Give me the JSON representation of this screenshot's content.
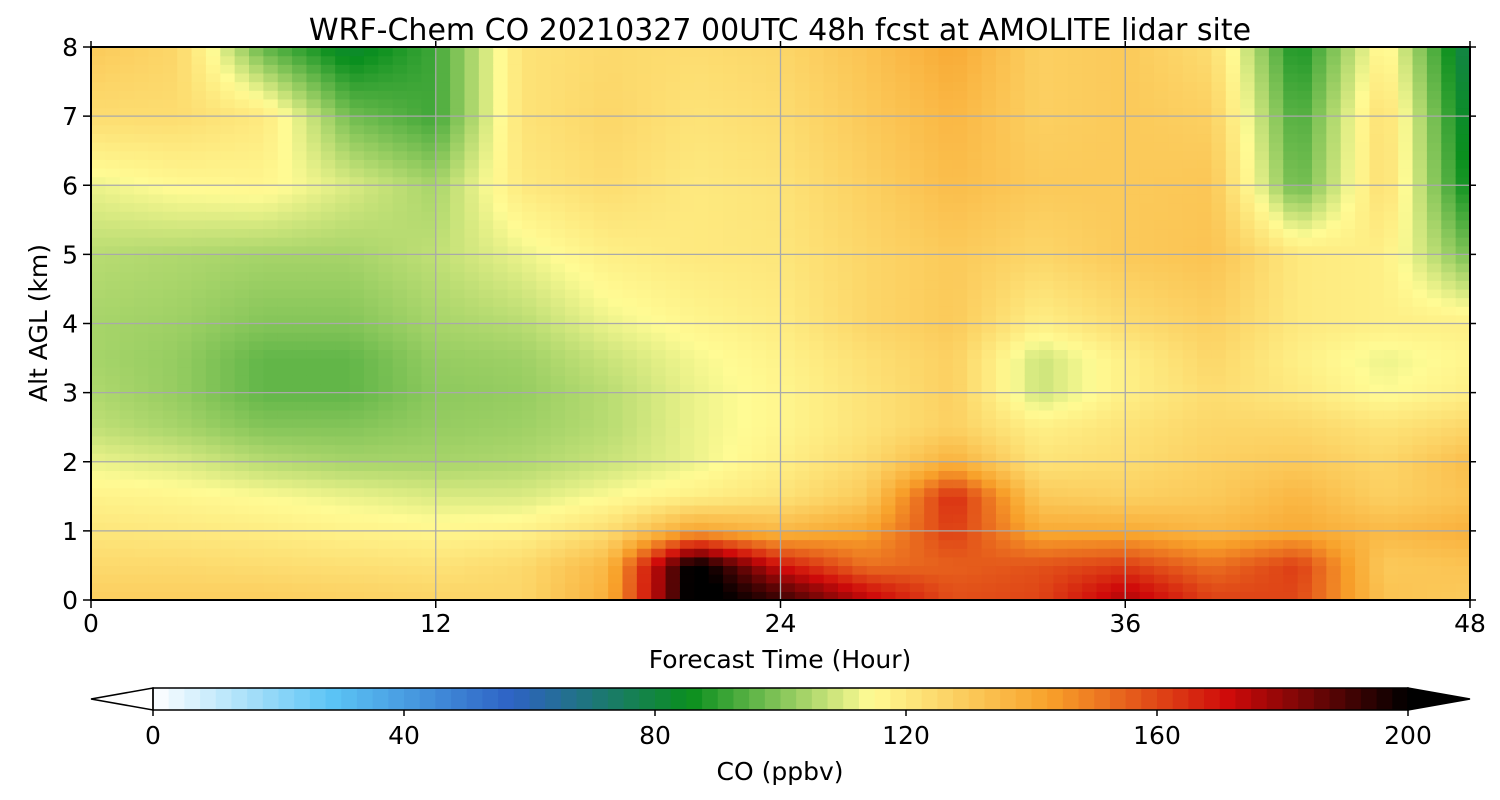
{
  "chart_data": {
    "type": "heatmap",
    "title": "WRF-Chem CO  20210327 00UTC 48h fcst at AMOLITE lidar site",
    "xlabel": "Forecast Time (Hour)",
    "ylabel": "Alt AGL (km)",
    "xlim": [
      0,
      48
    ],
    "ylim": [
      0,
      8
    ],
    "x_ticks": [
      0,
      12,
      24,
      36,
      48
    ],
    "y_ticks": [
      0,
      1,
      2,
      3,
      4,
      5,
      6,
      7,
      8
    ],
    "grid": true,
    "x": [
      0,
      3,
      6,
      9,
      12,
      15,
      18,
      21,
      24,
      27,
      30,
      33,
      36,
      39,
      42,
      45,
      48
    ],
    "y": [
      0.1,
      0.5,
      1,
      1.5,
      2,
      2.5,
      3,
      3.5,
      4,
      5,
      6,
      7,
      8
    ],
    "z": [
      [
        128,
        128,
        128,
        127,
        126,
        126,
        138,
        205,
        190,
        172,
        158,
        160,
        175,
        160,
        160,
        132,
        130
      ],
      [
        125,
        125,
        124,
        123,
        122,
        125,
        136,
        205,
        170,
        152,
        155,
        158,
        162,
        152,
        162,
        130,
        132
      ],
      [
        121,
        120,
        119,
        117,
        116,
        117,
        124,
        142,
        136,
        142,
        162,
        140,
        140,
        136,
        140,
        135,
        138
      ],
      [
        117,
        116,
        114,
        112,
        110,
        110,
        114,
        118,
        122,
        130,
        166,
        130,
        128,
        130,
        136,
        128,
        132
      ],
      [
        112,
        110,
        106,
        104,
        104,
        105,
        108,
        112,
        118,
        125,
        138,
        122,
        124,
        128,
        130,
        126,
        134
      ],
      [
        107,
        104,
        100,
        100,
        102,
        103,
        106,
        112,
        116,
        122,
        128,
        118,
        122,
        126,
        126,
        122,
        126
      ],
      [
        105,
        102,
        96,
        96,
        101,
        102,
        106,
        112,
        116,
        122,
        128,
        108,
        118,
        124,
        120,
        114,
        118
      ],
      [
        104,
        102,
        96,
        96,
        102,
        103,
        108,
        113,
        117,
        123,
        128,
        108,
        118,
        126,
        118,
        112,
        116
      ],
      [
        104,
        103,
        100,
        100,
        104,
        106,
        112,
        116,
        119,
        126,
        130,
        118,
        124,
        128,
        120,
        118,
        118
      ],
      [
        106,
        105,
        104,
        104,
        107,
        112,
        118,
        120,
        121,
        126,
        130,
        126,
        130,
        132,
        120,
        118,
        98
      ],
      [
        112,
        115,
        116,
        110,
        104,
        120,
        124,
        120,
        122,
        128,
        134,
        130,
        130,
        131,
        96,
        124,
        84
      ],
      [
        124,
        124,
        120,
        98,
        92,
        122,
        126,
        122,
        124,
        130,
        136,
        128,
        130,
        128,
        92,
        124,
        80
      ],
      [
        130,
        126,
        96,
        82,
        92,
        122,
        125,
        124,
        126,
        132,
        140,
        128,
        130,
        124,
        86,
        118,
        76
      ]
    ],
    "colorbar": {
      "label": "CO  (ppbv)",
      "min": 0,
      "max": 200,
      "ticks": [
        0,
        40,
        80,
        120,
        160,
        200
      ],
      "extend": "both",
      "colors": [
        "#ffffff",
        "#5bc4f5",
        "#2e62c4",
        "#0a8f1e",
        "#fffb94",
        "#f8a12a",
        "#cf0a0a",
        "#000000"
      ]
    }
  }
}
